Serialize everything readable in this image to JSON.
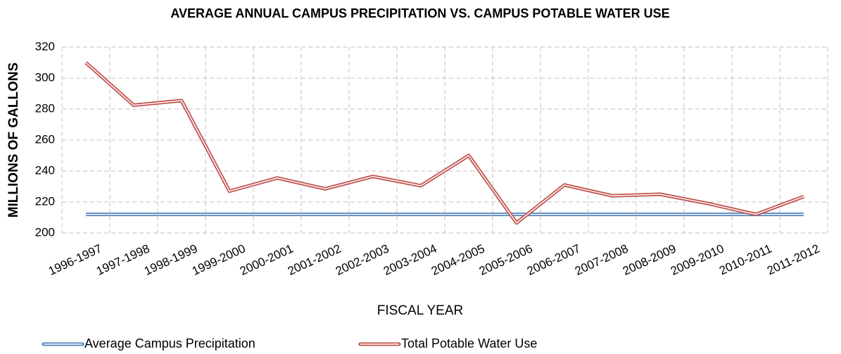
{
  "chart_data": {
    "type": "line",
    "title": "AVERAGE ANNUAL CAMPUS PRECIPITATION VS. CAMPUS POTABLE WATER USE",
    "xlabel": "FISCAL YEAR",
    "ylabel": "MILLIONS OF GALLONS",
    "categories": [
      "1996-1997",
      "1997-1998",
      "1998-1999",
      "1999-2000",
      "2000-2001",
      "2001-2002",
      "2002-2003",
      "2003-2004",
      "2004-2005",
      "2005-2006",
      "2006-2007",
      "2007-2008",
      "2008-2009",
      "2009-2010",
      "2010-2011",
      "2011-2012"
    ],
    "series": [
      {
        "name": "Average Campus Precipitation",
        "color": "#4f81bd",
        "values": [
          212,
          212,
          212,
          212,
          212,
          212,
          212,
          212,
          212,
          212,
          212,
          212,
          212,
          212,
          212,
          212
        ]
      },
      {
        "name": "Total Potable Water Use",
        "color": "#c0504d",
        "values": [
          310,
          282.5,
          285.5,
          227,
          235.5,
          228.5,
          236.5,
          230.5,
          250,
          206.5,
          231,
          224,
          225,
          219,
          212,
          223.5
        ]
      }
    ],
    "ylim": [
      200,
      320
    ],
    "yticks": [
      200,
      220,
      240,
      260,
      280,
      300,
      320
    ],
    "grid": true,
    "legend": "bottom"
  }
}
